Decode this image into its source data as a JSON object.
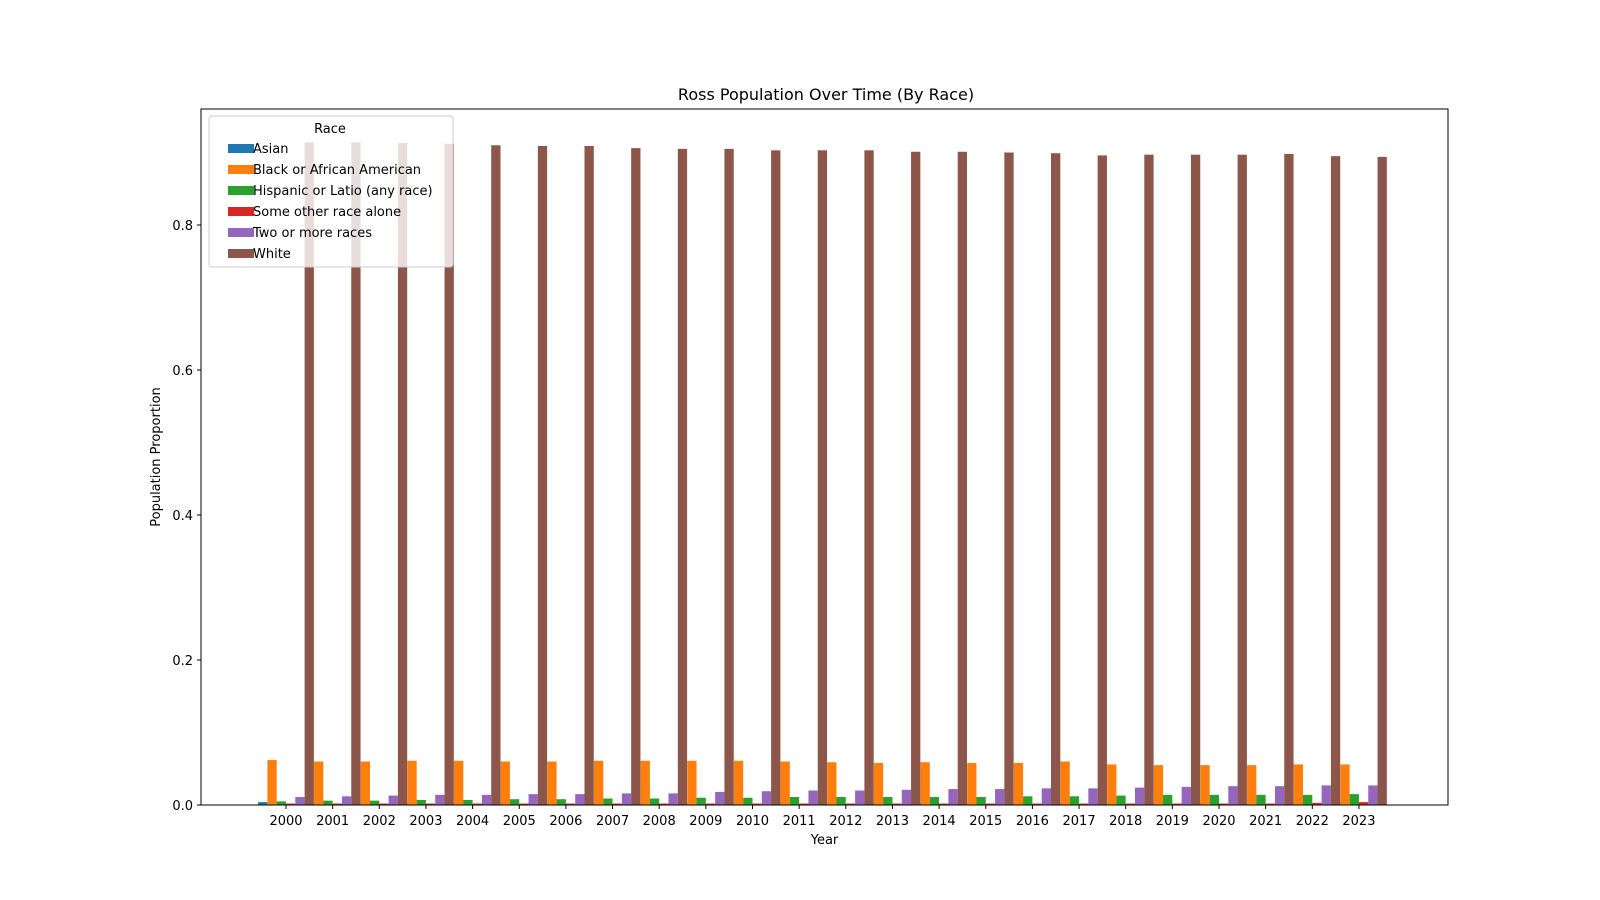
{
  "chart_data": {
    "type": "bar",
    "title": "Ross Population Over Time (By Race)",
    "xlabel": "Year",
    "ylabel": "Population Proportion",
    "ylim": [
      0,
      0.96
    ],
    "yticks": [
      0.0,
      0.2,
      0.4,
      0.6,
      0.8
    ],
    "grid": false,
    "legend": {
      "title": "Race",
      "placement": "top-left"
    },
    "categories": [
      "2000",
      "2001",
      "2002",
      "2003",
      "2004",
      "2005",
      "2006",
      "2007",
      "2008",
      "2009",
      "2010",
      "2011",
      "2012",
      "2013",
      "2014",
      "2015",
      "2016",
      "2017",
      "2018",
      "2019",
      "2020",
      "2021",
      "2022",
      "2023"
    ],
    "series": [
      {
        "name": "Asian",
        "color": "#1f77b4",
        "values": [
          0.004,
          0.003,
          0.003,
          0.003,
          0.003,
          0.003,
          0.003,
          0.003,
          0.003,
          0.003,
          0.003,
          0.003,
          0.003,
          0.003,
          0.003,
          0.003,
          0.003,
          0.003,
          0.003,
          0.003,
          0.003,
          0.003,
          0.003,
          0.003
        ]
      },
      {
        "name": "Black or African American",
        "color": "#ff7f0e",
        "values": [
          0.062,
          0.06,
          0.06,
          0.061,
          0.061,
          0.06,
          0.06,
          0.061,
          0.061,
          0.061,
          0.061,
          0.06,
          0.059,
          0.058,
          0.059,
          0.058,
          0.058,
          0.06,
          0.056,
          0.055,
          0.055,
          0.055,
          0.056,
          0.056
        ]
      },
      {
        "name": "Hispanic or Latio (any race)",
        "color": "#2ca02c",
        "values": [
          0.005,
          0.006,
          0.006,
          0.007,
          0.007,
          0.008,
          0.008,
          0.009,
          0.009,
          0.01,
          0.01,
          0.011,
          0.011,
          0.011,
          0.011,
          0.011,
          0.012,
          0.012,
          0.013,
          0.014,
          0.014,
          0.014,
          0.014,
          0.015
        ]
      },
      {
        "name": "Some other race alone",
        "color": "#d62728",
        "values": [
          0.002,
          0.002,
          0.002,
          0.002,
          0.002,
          0.002,
          0.002,
          0.002,
          0.002,
          0.002,
          0.002,
          0.002,
          0.002,
          0.002,
          0.002,
          0.002,
          0.002,
          0.002,
          0.002,
          0.002,
          0.002,
          0.002,
          0.003,
          0.004
        ]
      },
      {
        "name": "Two or more races",
        "color": "#9467bd",
        "values": [
          0.011,
          0.012,
          0.013,
          0.014,
          0.014,
          0.015,
          0.015,
          0.016,
          0.016,
          0.018,
          0.019,
          0.02,
          0.02,
          0.021,
          0.022,
          0.022,
          0.023,
          0.023,
          0.024,
          0.025,
          0.026,
          0.026,
          0.027,
          0.027
        ]
      },
      {
        "name": "White",
        "color": "#8c564b",
        "values": [
          0.914,
          0.914,
          0.913,
          0.912,
          0.91,
          0.909,
          0.909,
          0.906,
          0.905,
          0.905,
          0.903,
          0.903,
          0.903,
          0.901,
          0.901,
          0.9,
          0.899,
          0.896,
          0.897,
          0.897,
          0.897,
          0.898,
          0.895,
          0.894
        ]
      }
    ]
  }
}
